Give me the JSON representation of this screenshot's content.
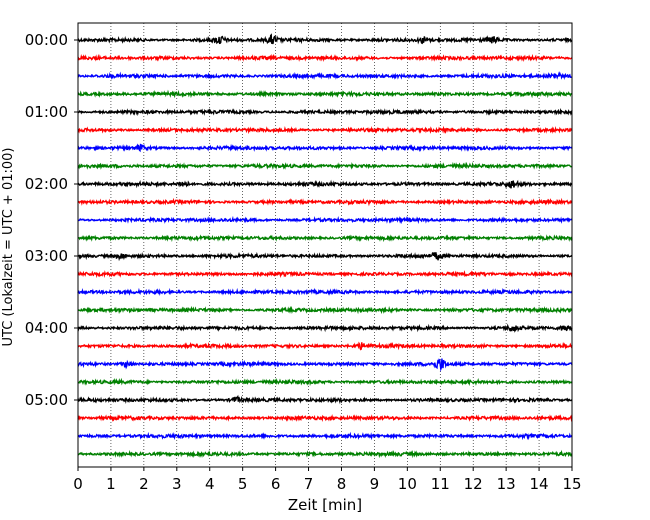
{
  "chart_data": {
    "type": "line",
    "title": "",
    "xlabel": "Zeit  [min]",
    "ylabel": "UTC (Lokalzeit = UTC + 01:00)",
    "xlim": [
      0,
      15
    ],
    "xticks": [
      "0",
      "1",
      "2",
      "3",
      "4",
      "5",
      "6",
      "7",
      "8",
      "9",
      "10",
      "11",
      "12",
      "13",
      "14",
      "15"
    ],
    "ytick_labels": [
      "00:00",
      "01:00",
      "02:00",
      "03:00",
      "04:00",
      "05:00"
    ],
    "grid_x": true,
    "row_interval_min": 15,
    "row_colors": [
      "#000000",
      "#ff0000",
      "#0000ff",
      "#008000"
    ],
    "rows": [
      {
        "start": "00:00",
        "color": "#000000"
      },
      {
        "start": "00:15",
        "color": "#ff0000"
      },
      {
        "start": "00:30",
        "color": "#0000ff"
      },
      {
        "start": "00:45",
        "color": "#008000"
      },
      {
        "start": "01:00",
        "color": "#000000"
      },
      {
        "start": "01:15",
        "color": "#ff0000"
      },
      {
        "start": "01:30",
        "color": "#0000ff"
      },
      {
        "start": "01:45",
        "color": "#008000"
      },
      {
        "start": "02:00",
        "color": "#000000"
      },
      {
        "start": "02:15",
        "color": "#ff0000"
      },
      {
        "start": "02:30",
        "color": "#0000ff"
      },
      {
        "start": "02:45",
        "color": "#008000"
      },
      {
        "start": "03:00",
        "color": "#000000"
      },
      {
        "start": "03:15",
        "color": "#ff0000"
      },
      {
        "start": "03:30",
        "color": "#0000ff"
      },
      {
        "start": "03:45",
        "color": "#008000"
      },
      {
        "start": "04:00",
        "color": "#000000"
      },
      {
        "start": "04:15",
        "color": "#ff0000"
      },
      {
        "start": "04:30",
        "color": "#0000ff"
      },
      {
        "start": "04:45",
        "color": "#008000"
      },
      {
        "start": "05:00",
        "color": "#000000"
      },
      {
        "start": "05:15",
        "color": "#ff0000"
      },
      {
        "start": "05:30",
        "color": "#0000ff"
      },
      {
        "start": "05:45",
        "color": "#008000"
      }
    ],
    "events": [
      {
        "row": 0,
        "minute": 4.3,
        "amplitude": 1.6
      },
      {
        "row": 0,
        "minute": 5.9,
        "amplitude": 1.9
      },
      {
        "row": 0,
        "minute": 10.5,
        "amplitude": 1.3
      },
      {
        "row": 0,
        "minute": 12.6,
        "amplitude": 1.2
      },
      {
        "row": 2,
        "minute": 14.5,
        "amplitude": 1.2
      },
      {
        "row": 6,
        "minute": 1.9,
        "amplitude": 1.1
      },
      {
        "row": 8,
        "minute": 3.2,
        "amplitude": 1.3
      },
      {
        "row": 8,
        "minute": 13.2,
        "amplitude": 1.5
      },
      {
        "row": 12,
        "minute": 1.3,
        "amplitude": 1.1
      },
      {
        "row": 12,
        "minute": 10.9,
        "amplitude": 1.4
      },
      {
        "row": 16,
        "minute": 13.2,
        "amplitude": 1.2
      },
      {
        "row": 16,
        "minute": 14.8,
        "amplitude": 1.2
      },
      {
        "row": 17,
        "minute": 8.6,
        "amplitude": 1.1
      },
      {
        "row": 18,
        "minute": 11.0,
        "amplitude": 2.4
      },
      {
        "row": 18,
        "minute": 1.5,
        "amplitude": 1.3
      },
      {
        "row": 20,
        "minute": 4.8,
        "amplitude": 1.1
      }
    ]
  }
}
